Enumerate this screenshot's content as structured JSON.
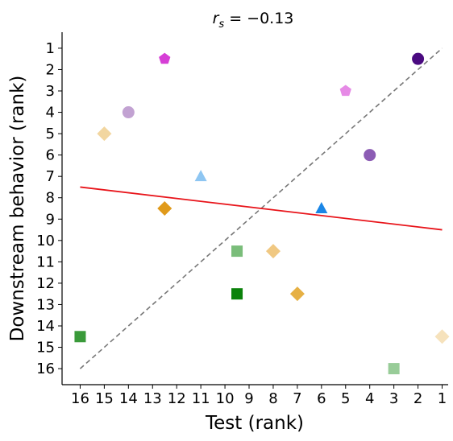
{
  "chart_data": {
    "type": "scatter",
    "title_prefix": "r",
    "title_subscript": "s",
    "title_value": " = −0.13",
    "xlabel": "Test (rank)",
    "ylabel": "Downstream behavior (rank)",
    "xlim": [
      16.75,
      0.75
    ],
    "ylim": [
      16.75,
      0.25
    ],
    "x_inverted": true,
    "y_inverted": true,
    "xticks": [
      16,
      15,
      14,
      13,
      12,
      11,
      10,
      9,
      8,
      7,
      6,
      5,
      4,
      3,
      2,
      1
    ],
    "yticks": [
      1,
      2,
      3,
      4,
      5,
      6,
      7,
      8,
      9,
      10,
      11,
      12,
      13,
      14,
      15,
      16
    ],
    "grid": false,
    "points": [
      {
        "x": 16,
        "y": 14.5,
        "marker": "square",
        "color": "#3a9a3a"
      },
      {
        "x": 15,
        "y": 5,
        "marker": "diamond",
        "color": "#f2d6a0"
      },
      {
        "x": 14,
        "y": 4,
        "marker": "circle",
        "color": "#c2a2d2"
      },
      {
        "x": 12.5,
        "y": 1.5,
        "marker": "pentagon",
        "color": "#d63ed6"
      },
      {
        "x": 12.5,
        "y": 8.5,
        "marker": "diamond",
        "color": "#e09a1a"
      },
      {
        "x": 11,
        "y": 7,
        "marker": "triangle",
        "color": "#8ec6f2"
      },
      {
        "x": 9.5,
        "y": 10.5,
        "marker": "square",
        "color": "#7abd7a"
      },
      {
        "x": 9.5,
        "y": 12.5,
        "marker": "square",
        "color": "#0b820b"
      },
      {
        "x": 8,
        "y": 10.5,
        "marker": "diamond",
        "color": "#f0c882"
      },
      {
        "x": 7,
        "y": 12.5,
        "marker": "diamond",
        "color": "#e6b044"
      },
      {
        "x": 6,
        "y": 8.5,
        "marker": "triangle",
        "color": "#1a86e6"
      },
      {
        "x": 5,
        "y": 3,
        "marker": "pentagon",
        "color": "#e68ae6"
      },
      {
        "x": 4,
        "y": 6,
        "marker": "circle",
        "color": "#8c5cb4"
      },
      {
        "x": 3,
        "y": 16,
        "marker": "square",
        "color": "#98cc98"
      },
      {
        "x": 2,
        "y": 1.5,
        "marker": "circle",
        "color": "#4a0a80"
      },
      {
        "x": 1,
        "y": 14.5,
        "marker": "diamond",
        "color": "#f6e2bc"
      }
    ],
    "fit_line": {
      "x": [
        16,
        1
      ],
      "y": [
        7.5,
        9.5
      ],
      "color": "#e8141a"
    },
    "identity_line": {
      "x": [
        16,
        1
      ],
      "y": [
        16,
        1
      ],
      "color": "#777777",
      "style": "dashed"
    }
  }
}
